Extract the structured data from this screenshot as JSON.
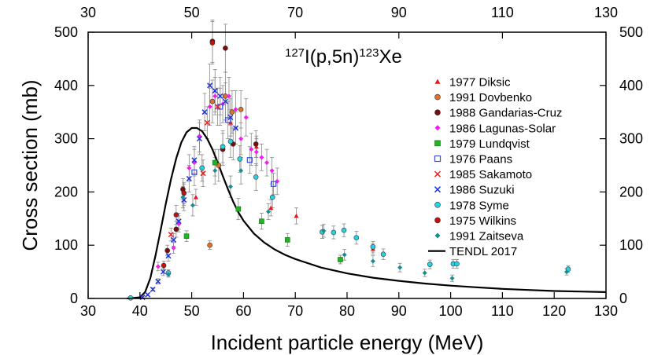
{
  "chart_data": {
    "type": "scatter",
    "title": "¹²⁷I(p,5n)¹²³Xe",
    "title_parts": {
      "target_mass": "127",
      "target": "I(p,5n)",
      "product_mass": "123",
      "product": "Xe"
    },
    "xlabel": "Incident particle energy (MeV)",
    "ylabel": "Cross section (mb)",
    "xlim": [
      30,
      130
    ],
    "ylim": [
      0,
      500
    ],
    "xticks": [
      30,
      40,
      50,
      60,
      70,
      80,
      90,
      100,
      110,
      120,
      130
    ],
    "xticks_top": [
      30,
      50,
      70,
      90,
      110,
      130
    ],
    "yticks": [
      0,
      100,
      200,
      300,
      400,
      500
    ],
    "legend_position": "top-right",
    "series": [
      {
        "name": "1977 Diksic",
        "marker": "triangle",
        "color": "#e8141c",
        "points": [
          [
            50.8,
            190,
            15
          ],
          [
            57.5,
            330,
            25
          ],
          [
            62.5,
            285,
            20
          ],
          [
            65.3,
            170,
            15
          ],
          [
            70.2,
            155,
            15
          ],
          [
            75.2,
            125,
            12
          ],
          [
            85.0,
            93,
            10
          ]
        ]
      },
      {
        "name": "1991 Dovbenko",
        "marker": "circle",
        "color": "#e0712a",
        "points": [
          [
            53.5,
            100,
            8
          ],
          [
            54.0,
            370,
            40
          ],
          [
            55.2,
            250,
            30
          ],
          [
            56.5,
            380,
            45
          ],
          [
            57.8,
            350,
            40
          ],
          [
            59.5,
            355,
            35
          ]
        ]
      },
      {
        "name": "1988 Gandarias-Cruz",
        "marker": "circle",
        "color": "#7a0c0c",
        "points": [
          [
            45.3,
            90,
            10
          ],
          [
            47.0,
            130,
            15
          ],
          [
            48.3,
            205,
            20
          ],
          [
            54.0,
            483,
            40
          ],
          [
            56.0,
            280,
            30
          ],
          [
            56.5,
            470,
            45
          ],
          [
            58.0,
            290,
            30
          ],
          [
            62.4,
            290,
            25
          ]
        ]
      },
      {
        "name": "1986 Lagunas-Solar",
        "marker": "diamond",
        "color": "#f41cf0",
        "points": [
          [
            43.5,
            60,
            8
          ],
          [
            46.5,
            95,
            10
          ],
          [
            47.5,
            140,
            15
          ],
          [
            48.5,
            195,
            20
          ],
          [
            49.5,
            245,
            25
          ],
          [
            50.5,
            255,
            25
          ],
          [
            51.5,
            305,
            30
          ],
          [
            53.5,
            360,
            35
          ],
          [
            54.5,
            380,
            35
          ],
          [
            56.0,
            365,
            35
          ],
          [
            57.2,
            380,
            35
          ],
          [
            58.5,
            355,
            35
          ],
          [
            59.5,
            300,
            30
          ],
          [
            60.5,
            340,
            35
          ],
          [
            61.5,
            280,
            30
          ],
          [
            62.5,
            275,
            25
          ],
          [
            63.5,
            265,
            25
          ],
          [
            64.5,
            255,
            25
          ],
          [
            65.5,
            240,
            25
          ],
          [
            66.5,
            220,
            25
          ]
        ]
      },
      {
        "name": "1979 Lundqvist",
        "marker": "square",
        "color": "#1fb51f",
        "points": [
          [
            49.0,
            117,
            10
          ],
          [
            54.5,
            255,
            25
          ],
          [
            59.0,
            168,
            20
          ],
          [
            63.5,
            145,
            15
          ],
          [
            68.5,
            110,
            12
          ],
          [
            78.7,
            73,
            8
          ]
        ]
      },
      {
        "name": "1976 Paans",
        "marker": "square-open",
        "color": "#3b4fd6",
        "points": [
          [
            50.5,
            237,
            25
          ],
          [
            55.5,
            360,
            35
          ],
          [
            57.0,
            335,
            35
          ],
          [
            61.2,
            260,
            25
          ],
          [
            65.8,
            215,
            20
          ]
        ]
      },
      {
        "name": "1985 Sakamoto",
        "marker": "x",
        "color": "#ee1c1c",
        "points": [
          [
            46.0,
            120,
            12
          ],
          [
            52.2,
            235,
            25
          ],
          [
            53.0,
            330,
            30
          ],
          [
            55.0,
            360,
            35
          ]
        ]
      },
      {
        "name": "1986 Suzuki",
        "marker": "x",
        "color": "#2233dd",
        "points": [
          [
            40.5,
            2,
            1
          ],
          [
            41.5,
            7,
            2
          ],
          [
            42.5,
            17,
            3
          ],
          [
            43.5,
            32,
            5
          ],
          [
            44.5,
            50,
            7
          ],
          [
            45.5,
            80,
            10
          ],
          [
            46.5,
            110,
            12
          ],
          [
            47.5,
            145,
            15
          ],
          [
            48.5,
            185,
            20
          ],
          [
            49.5,
            225,
            25
          ],
          [
            50.5,
            260,
            25
          ],
          [
            51.5,
            300,
            30
          ],
          [
            52.5,
            350,
            35
          ],
          [
            53.5,
            400,
            40
          ],
          [
            54.5,
            390,
            40
          ],
          [
            55.5,
            380,
            35
          ],
          [
            56.5,
            370,
            35
          ],
          [
            57.5,
            340,
            35
          ],
          [
            58.5,
            320,
            30
          ]
        ]
      },
      {
        "name": "1978 Syme",
        "marker": "circle",
        "color": "#25d3e3",
        "points": [
          [
            38.2,
            1,
            0.5
          ],
          [
            45.5,
            48,
            6
          ],
          [
            52.0,
            245,
            25
          ],
          [
            56.0,
            285,
            30
          ],
          [
            57.5,
            295,
            30
          ],
          [
            59.3,
            262,
            25
          ],
          [
            62.4,
            228,
            25
          ],
          [
            65.6,
            190,
            20
          ],
          [
            75.2,
            125,
            12
          ],
          [
            77.4,
            124,
            12
          ],
          [
            79.4,
            128,
            12
          ],
          [
            81.8,
            114,
            12
          ],
          [
            85.0,
            97,
            10
          ],
          [
            87.0,
            83,
            10
          ],
          [
            96.0,
            64,
            8
          ],
          [
            100.5,
            65,
            8
          ],
          [
            101.2,
            65,
            8
          ],
          [
            122.7,
            55,
            6
          ]
        ]
      },
      {
        "name": "1975 Wilkins",
        "marker": "circle",
        "color": "#c41010",
        "points": [
          [
            44.6,
            62,
            8
          ],
          [
            47.0,
            157,
            18
          ],
          [
            48.5,
            198,
            20
          ],
          [
            54.0,
            480,
            40
          ]
        ]
      },
      {
        "name": "1991 Zaitseva",
        "marker": "diamond",
        "color": "#1a8b90",
        "points": [
          [
            45.5,
            45,
            5
          ],
          [
            48.3,
            190,
            20
          ],
          [
            50.2,
            175,
            20
          ],
          [
            54.5,
            240,
            25
          ],
          [
            57.5,
            210,
            20
          ],
          [
            59.5,
            240,
            25
          ],
          [
            64.8,
            163,
            15
          ],
          [
            75.5,
            127,
            12
          ],
          [
            79.5,
            82,
            10
          ],
          [
            85.0,
            70,
            10
          ],
          [
            90.2,
            58,
            8
          ],
          [
            95.0,
            48,
            7
          ],
          [
            100.3,
            38,
            6
          ],
          [
            122.4,
            50,
            6
          ]
        ]
      },
      {
        "name": "TENDL 2017",
        "marker": "line",
        "color": "#000000",
        "points": [
          [
            37.5,
            0
          ],
          [
            40.0,
            2
          ],
          [
            41.0,
            12
          ],
          [
            42.0,
            38
          ],
          [
            43.0,
            80
          ],
          [
            44.0,
            128
          ],
          [
            45.0,
            178
          ],
          [
            46.0,
            224
          ],
          [
            47.0,
            263
          ],
          [
            48.0,
            293
          ],
          [
            49.0,
            312
          ],
          [
            50.0,
            320
          ],
          [
            51.0,
            320
          ],
          [
            52.0,
            314
          ],
          [
            53.0,
            300
          ],
          [
            54.0,
            280
          ],
          [
            55.0,
            256
          ],
          [
            56.0,
            230
          ],
          [
            57.0,
            205
          ],
          [
            58.0,
            182
          ],
          [
            59.0,
            162
          ],
          [
            60.0,
            146
          ],
          [
            62.0,
            122
          ],
          [
            64.0,
            105
          ],
          [
            66.0,
            92
          ],
          [
            68.0,
            82
          ],
          [
            70.0,
            74
          ],
          [
            75.0,
            58
          ],
          [
            80.0,
            47
          ],
          [
            85.0,
            39
          ],
          [
            90.0,
            33
          ],
          [
            95.0,
            28
          ],
          [
            100.0,
            24
          ],
          [
            105.0,
            21
          ],
          [
            110.0,
            18
          ],
          [
            115.0,
            16
          ],
          [
            120.0,
            14
          ],
          [
            125.0,
            13
          ],
          [
            130.0,
            12
          ]
        ]
      }
    ]
  }
}
